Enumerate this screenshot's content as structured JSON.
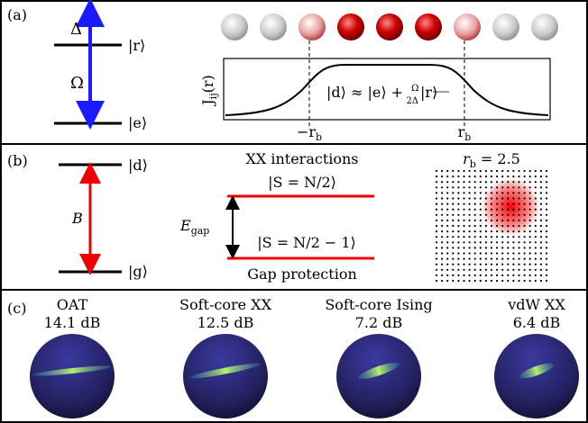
{
  "panel_a": {
    "tag": "(a)",
    "delta": "Δ",
    "omega": "Ω",
    "level_r": "|r⟩",
    "level_e": "|e⟩",
    "y_label": {
      "symbol": "J",
      "subscript": "ij",
      "argument": "(r)"
    },
    "dressed_state": {
      "left": "|d⟩ ≈ |e⟩ + ",
      "numerator": "Ω",
      "denominator": "2Δ",
      "right": "|r⟩"
    },
    "minus_rb": {
      "symbol": "−r",
      "subscript": "b"
    },
    "rb": {
      "symbol": "r",
      "subscript": "b"
    }
  },
  "panel_b": {
    "tag": "(b)",
    "level_d": "|d⟩",
    "level_g": "|g⟩",
    "coupling": "B",
    "heading": "XX interactions",
    "upper_state": "|S = N/2⟩",
    "lower_state": "|S = N/2 − 1⟩",
    "gap": {
      "symbol": "E",
      "subscript": "gap"
    },
    "footer": "Gap protection",
    "radius": {
      "symbol": "r",
      "subscript": "b",
      "rest": " = 2.5"
    }
  },
  "panel_c": {
    "tag": "(c)",
    "items": [
      {
        "name": "OAT",
        "squeezing": "14.1 dB"
      },
      {
        "name": "Soft-core XX",
        "squeezing": "12.5 dB"
      },
      {
        "name": "Soft-core Ising",
        "squeezing": "7.2 dB"
      },
      {
        "name": "vdW XX",
        "squeezing": "6.4 dB"
      }
    ]
  }
}
